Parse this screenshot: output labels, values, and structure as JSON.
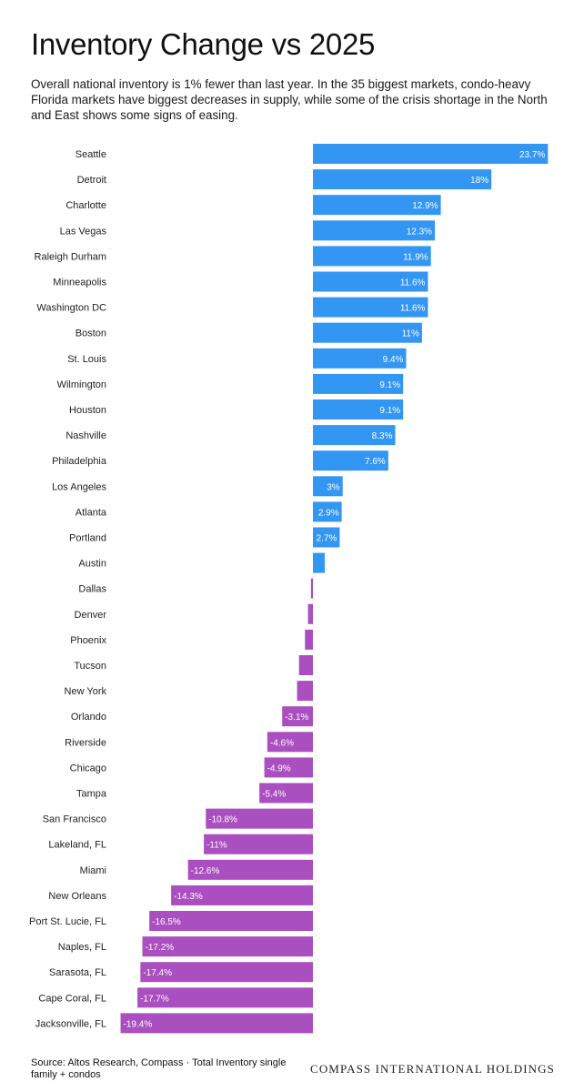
{
  "header": {
    "title": "Inventory Change vs 2025",
    "subtitle": "Overall national inventory is 1% fewer than last year. In the 35 biggest markets, condo-heavy Florida markets have biggest decreases in supply, while some of the crisis shortage in the North and East shows some signs of easing."
  },
  "footer": {
    "source": "Source: Altos Research, Compass · Total Inventory single family + condos",
    "brand": "COMPASS INTERNATIONAL HOLDINGS"
  },
  "colors": {
    "positive": "#3396f2",
    "negative": "#aa4fbf"
  },
  "chart_data": {
    "type": "bar",
    "orientation": "horizontal",
    "categories": [
      "Seattle",
      "Detroit",
      "Charlotte",
      "Las Vegas",
      "Raleigh Durham",
      "Minneapolis",
      "Washington DC",
      "Boston",
      "St. Louis",
      "Wilmington",
      "Houston",
      "Nashville",
      "Philadelphia",
      "Los Angeles",
      "Atlanta",
      "Portland",
      "Austin",
      "Dallas",
      "Denver",
      "Phoenix",
      "Tucson",
      "New York",
      "Orlando",
      "Riverside",
      "Chicago",
      "Tampa",
      "San Francisco",
      "Lakeland, FL",
      "Miami",
      "New Orleans",
      "Port St. Lucie, FL",
      "Naples, FL",
      "Sarasota, FL",
      "Cape Coral, FL",
      "Jacksonville, FL"
    ],
    "values": [
      23.7,
      18,
      12.9,
      12.3,
      11.9,
      11.6,
      11.6,
      11,
      9.4,
      9.1,
      9.1,
      8.3,
      7.6,
      3,
      2.9,
      2.7,
      1.2,
      -0.2,
      -0.5,
      -0.8,
      -1.4,
      -1.6,
      -3.1,
      -4.6,
      -4.9,
      -5.4,
      -10.8,
      -11,
      -12.6,
      -14.3,
      -16.5,
      -17.2,
      -17.4,
      -17.7,
      -19.4
    ],
    "labels": [
      "23.7%",
      "18%",
      "12.9%",
      "12.3%",
      "11.9%",
      "11.6%",
      "11.6%",
      "11%",
      "9.4%",
      "9.1%",
      "9.1%",
      "8.3%",
      "7.6%",
      "3%",
      "2.9%",
      "2.7%",
      "",
      "",
      "",
      "",
      "",
      "",
      "-3.1%",
      "-4.6%",
      "-4.9%",
      "-5.4%",
      "-10.8%",
      "-11%",
      "-12.6%",
      "-14.3%",
      "-16.5%",
      "-17.2%",
      "-17.4%",
      "-17.7%",
      "-19.4%"
    ],
    "xlim": [
      -20,
      24
    ],
    "grid": false,
    "legend": "none"
  }
}
